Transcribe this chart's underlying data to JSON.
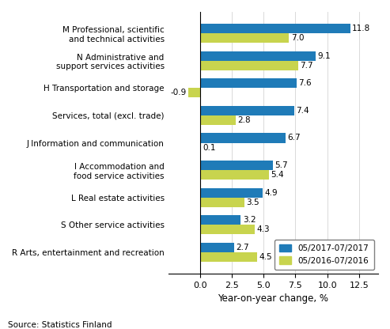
{
  "categories": [
    "M Professional, scientific\nand technical activities",
    "N Administrative and\nsupport services activities",
    "H Transportation and storage",
    "Services, total (excl. trade)",
    "J Information and communication",
    "I Accommodation and\nfood service activities",
    "L Real estate activities",
    "S Other service activities",
    "R Arts, entertainment and recreation"
  ],
  "values_2017": [
    11.8,
    9.1,
    7.6,
    7.4,
    6.7,
    5.7,
    4.9,
    3.2,
    2.7
  ],
  "values_2016": [
    7.0,
    7.7,
    -0.9,
    2.8,
    0.1,
    5.4,
    3.5,
    4.3,
    4.5
  ],
  "color_2017": "#1F7BB8",
  "color_2016": "#C8D44E",
  "legend_2017": "05/2017-07/2017",
  "legend_2016": "05/2016-07/2016",
  "xlabel": "Year-on-year change, %",
  "source": "Source: Statistics Finland",
  "xlim": [
    -2.5,
    14.0
  ],
  "xticks": [
    0.0,
    2.5,
    5.0,
    7.5,
    10.0,
    12.5
  ],
  "xtick_labels": [
    "0.0",
    "2.5",
    "5.0",
    "7.5",
    "10.0",
    "12.5"
  ]
}
